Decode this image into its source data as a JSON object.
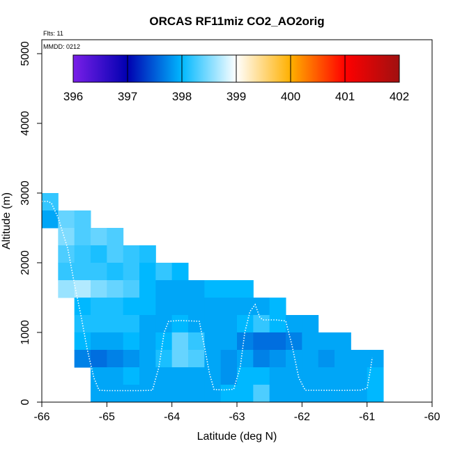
{
  "chart_data": {
    "type": "heatmap",
    "title": "ORCAS RF11miz CO2_AO2orig",
    "xlabel": "Latitude (deg N)",
    "ylabel": "Altitude (m)",
    "xlim": [
      -66,
      -60
    ],
    "ylim": [
      0,
      5200
    ],
    "x_ticks": [
      "-66",
      "-65",
      "-64",
      "-63",
      "-62",
      "-61",
      "-60"
    ],
    "y_ticks": [
      "0",
      "1000",
      "2000",
      "3000",
      "4000",
      "5000"
    ],
    "annotations": {
      "flights": "Flts: 11",
      "date": "MMDD: 0212"
    },
    "colorbar": {
      "min": 396,
      "max": 402,
      "ticks": [
        "396",
        "397",
        "398",
        "399",
        "400",
        "401",
        "402"
      ],
      "colors": [
        "#7a1fe8",
        "#0000b0",
        "#00b8ff",
        "#ffffff",
        "#ffb000",
        "#ff0000",
        "#a01010"
      ]
    },
    "cell_size": {
      "lat": 0.25,
      "alt_m": 250
    },
    "cells": [
      [
        -66.0,
        2750,
        398.2
      ],
      [
        -66.0,
        2500,
        397.9
      ],
      [
        -65.75,
        2500,
        398.4
      ],
      [
        -65.5,
        2500,
        398.3
      ],
      [
        -65.75,
        2250,
        398.5
      ],
      [
        -65.5,
        2250,
        398.3
      ],
      [
        -65.25,
        2250,
        398.4
      ],
      [
        -65.0,
        2250,
        398.3
      ],
      [
        -65.75,
        2000,
        398.3
      ],
      [
        -65.5,
        2000,
        398.2
      ],
      [
        -65.25,
        2000,
        398.1
      ],
      [
        -65.0,
        2000,
        398.3
      ],
      [
        -64.75,
        2000,
        398.2
      ],
      [
        -64.5,
        2000,
        398.1
      ],
      [
        -65.75,
        1750,
        398.2
      ],
      [
        -65.5,
        1750,
        398.2
      ],
      [
        -65.25,
        1750,
        398.2
      ],
      [
        -65.0,
        1750,
        398.1
      ],
      [
        -64.75,
        1750,
        398.2
      ],
      [
        -64.5,
        1750,
        398.0
      ],
      [
        -64.25,
        1750,
        398.2
      ],
      [
        -64.0,
        1750,
        398.0
      ],
      [
        -65.75,
        1500,
        398.6
      ],
      [
        -65.5,
        1500,
        398.7
      ],
      [
        -65.25,
        1500,
        398.5
      ],
      [
        -65.0,
        1500,
        398.4
      ],
      [
        -64.75,
        1500,
        398.3
      ],
      [
        -64.5,
        1500,
        398.0
      ],
      [
        -64.25,
        1500,
        397.9
      ],
      [
        -64.0,
        1500,
        397.9
      ],
      [
        -63.75,
        1500,
        397.9
      ],
      [
        -63.5,
        1500,
        398.0
      ],
      [
        -63.25,
        1500,
        398.0
      ],
      [
        -63.0,
        1500,
        398.0
      ],
      [
        -65.5,
        1250,
        398.0
      ],
      [
        -65.25,
        1250,
        398.1
      ],
      [
        -65.0,
        1250,
        398.1
      ],
      [
        -64.75,
        1250,
        398.0
      ],
      [
        -64.5,
        1250,
        398.0
      ],
      [
        -64.25,
        1250,
        397.9
      ],
      [
        -64.0,
        1250,
        397.9
      ],
      [
        -63.75,
        1250,
        397.9
      ],
      [
        -63.5,
        1250,
        397.9
      ],
      [
        -63.25,
        1250,
        397.9
      ],
      [
        -63.0,
        1250,
        397.9
      ],
      [
        -62.75,
        1250,
        397.9
      ],
      [
        -62.5,
        1250,
        398.0
      ],
      [
        -65.5,
        1000,
        398.1
      ],
      [
        -65.25,
        1000,
        398.1
      ],
      [
        -65.0,
        1000,
        398.1
      ],
      [
        -64.75,
        1000,
        398.1
      ],
      [
        -64.5,
        1000,
        397.9
      ],
      [
        -64.25,
        1000,
        397.9
      ],
      [
        -64.0,
        1000,
        398.0
      ],
      [
        -63.75,
        1000,
        397.9
      ],
      [
        -63.5,
        1000,
        397.9
      ],
      [
        -63.25,
        1000,
        397.9
      ],
      [
        -63.0,
        1000,
        398.0
      ],
      [
        -62.75,
        1000,
        398.2
      ],
      [
        -62.5,
        1000,
        398.0
      ],
      [
        -62.25,
        1000,
        397.9
      ],
      [
        -62.0,
        1000,
        397.9
      ],
      [
        -65.5,
        750,
        398.0
      ],
      [
        -65.25,
        750,
        397.9
      ],
      [
        -65.0,
        750,
        397.9
      ],
      [
        -64.75,
        750,
        398.0
      ],
      [
        -64.5,
        750,
        397.9
      ],
      [
        -64.25,
        750,
        398.0
      ],
      [
        -64.0,
        750,
        398.4
      ],
      [
        -63.75,
        750,
        398.2
      ],
      [
        -63.5,
        750,
        397.9
      ],
      [
        -63.25,
        750,
        397.9
      ],
      [
        -63.0,
        750,
        397.7
      ],
      [
        -62.75,
        750,
        397.6
      ],
      [
        -62.5,
        750,
        397.6
      ],
      [
        -62.25,
        750,
        397.7
      ],
      [
        -62.0,
        750,
        397.9
      ],
      [
        -61.75,
        750,
        397.9
      ],
      [
        -61.5,
        750,
        397.9
      ],
      [
        -65.5,
        500,
        397.7
      ],
      [
        -65.25,
        500,
        397.6
      ],
      [
        -65.0,
        500,
        397.7
      ],
      [
        -64.75,
        500,
        397.8
      ],
      [
        -64.5,
        500,
        397.9
      ],
      [
        -64.25,
        500,
        398.1
      ],
      [
        -64.0,
        500,
        398.4
      ],
      [
        -63.75,
        500,
        398.3
      ],
      [
        -63.5,
        500,
        397.9
      ],
      [
        -63.25,
        500,
        397.8
      ],
      [
        -63.0,
        500,
        397.9
      ],
      [
        -62.75,
        500,
        397.7
      ],
      [
        -62.5,
        500,
        397.8
      ],
      [
        -62.25,
        500,
        397.9
      ],
      [
        -62.0,
        500,
        397.9
      ],
      [
        -61.75,
        500,
        397.8
      ],
      [
        -61.5,
        500,
        397.9
      ],
      [
        -61.25,
        500,
        397.9
      ],
      [
        -61.0,
        500,
        397.9
      ],
      [
        -65.25,
        250,
        397.9
      ],
      [
        -65.0,
        250,
        397.9
      ],
      [
        -64.75,
        250,
        398.0
      ],
      [
        -64.5,
        250,
        397.9
      ],
      [
        -64.25,
        250,
        397.9
      ],
      [
        -64.0,
        250,
        397.9
      ],
      [
        -63.75,
        250,
        397.9
      ],
      [
        -63.5,
        250,
        397.9
      ],
      [
        -63.25,
        250,
        397.8
      ],
      [
        -63.0,
        250,
        398.0
      ],
      [
        -62.75,
        250,
        398.0
      ],
      [
        -62.5,
        250,
        397.9
      ],
      [
        -62.25,
        250,
        397.9
      ],
      [
        -62.0,
        250,
        397.9
      ],
      [
        -61.75,
        250,
        397.9
      ],
      [
        -61.5,
        250,
        397.9
      ],
      [
        -61.25,
        250,
        397.9
      ],
      [
        -61.0,
        250,
        398.0
      ],
      [
        -65.25,
        0,
        397.9
      ],
      [
        -65.0,
        0,
        397.9
      ],
      [
        -64.75,
        0,
        397.9
      ],
      [
        -64.5,
        0,
        397.9
      ],
      [
        -64.25,
        0,
        397.9
      ],
      [
        -64.0,
        0,
        397.9
      ],
      [
        -63.75,
        0,
        397.9
      ],
      [
        -63.5,
        0,
        397.9
      ],
      [
        -63.25,
        0,
        398.0
      ],
      [
        -63.0,
        0,
        398.0
      ],
      [
        -62.75,
        0,
        398.3
      ],
      [
        -62.5,
        0,
        397.9
      ],
      [
        -62.25,
        0,
        397.9
      ],
      [
        -62.0,
        0,
        397.9
      ],
      [
        -61.75,
        0,
        397.9
      ],
      [
        -61.5,
        0,
        397.9
      ],
      [
        -61.25,
        0,
        397.9
      ],
      [
        -61.0,
        0,
        398.0
      ]
    ],
    "flight_track": [
      [
        -66.0,
        2880
      ],
      [
        -65.9,
        2880
      ],
      [
        -65.85,
        2850
      ],
      [
        -65.75,
        2650
      ],
      [
        -65.6,
        2200
      ],
      [
        -65.5,
        1700
      ],
      [
        -65.4,
        1250
      ],
      [
        -65.3,
        750
      ],
      [
        -65.2,
        350
      ],
      [
        -65.12,
        170
      ],
      [
        -65.0,
        165
      ],
      [
        -64.8,
        165
      ],
      [
        -64.5,
        165
      ],
      [
        -64.3,
        170
      ],
      [
        -64.2,
        500
      ],
      [
        -64.12,
        1000
      ],
      [
        -64.05,
        1160
      ],
      [
        -63.9,
        1170
      ],
      [
        -63.7,
        1165
      ],
      [
        -63.58,
        1160
      ],
      [
        -63.5,
        800
      ],
      [
        -63.42,
        400
      ],
      [
        -63.35,
        180
      ],
      [
        -63.2,
        175
      ],
      [
        -63.05,
        185
      ],
      [
        -62.95,
        500
      ],
      [
        -62.88,
        1000
      ],
      [
        -62.8,
        1300
      ],
      [
        -62.72,
        1400
      ],
      [
        -62.65,
        1220
      ],
      [
        -62.6,
        1180
      ],
      [
        -62.4,
        1180
      ],
      [
        -62.25,
        1165
      ],
      [
        -62.15,
        800
      ],
      [
        -62.05,
        350
      ],
      [
        -61.95,
        170
      ],
      [
        -61.7,
        170
      ],
      [
        -61.4,
        168
      ],
      [
        -61.1,
        172
      ],
      [
        -61.0,
        200
      ],
      [
        -60.95,
        450
      ],
      [
        -60.92,
        640
      ]
    ]
  }
}
